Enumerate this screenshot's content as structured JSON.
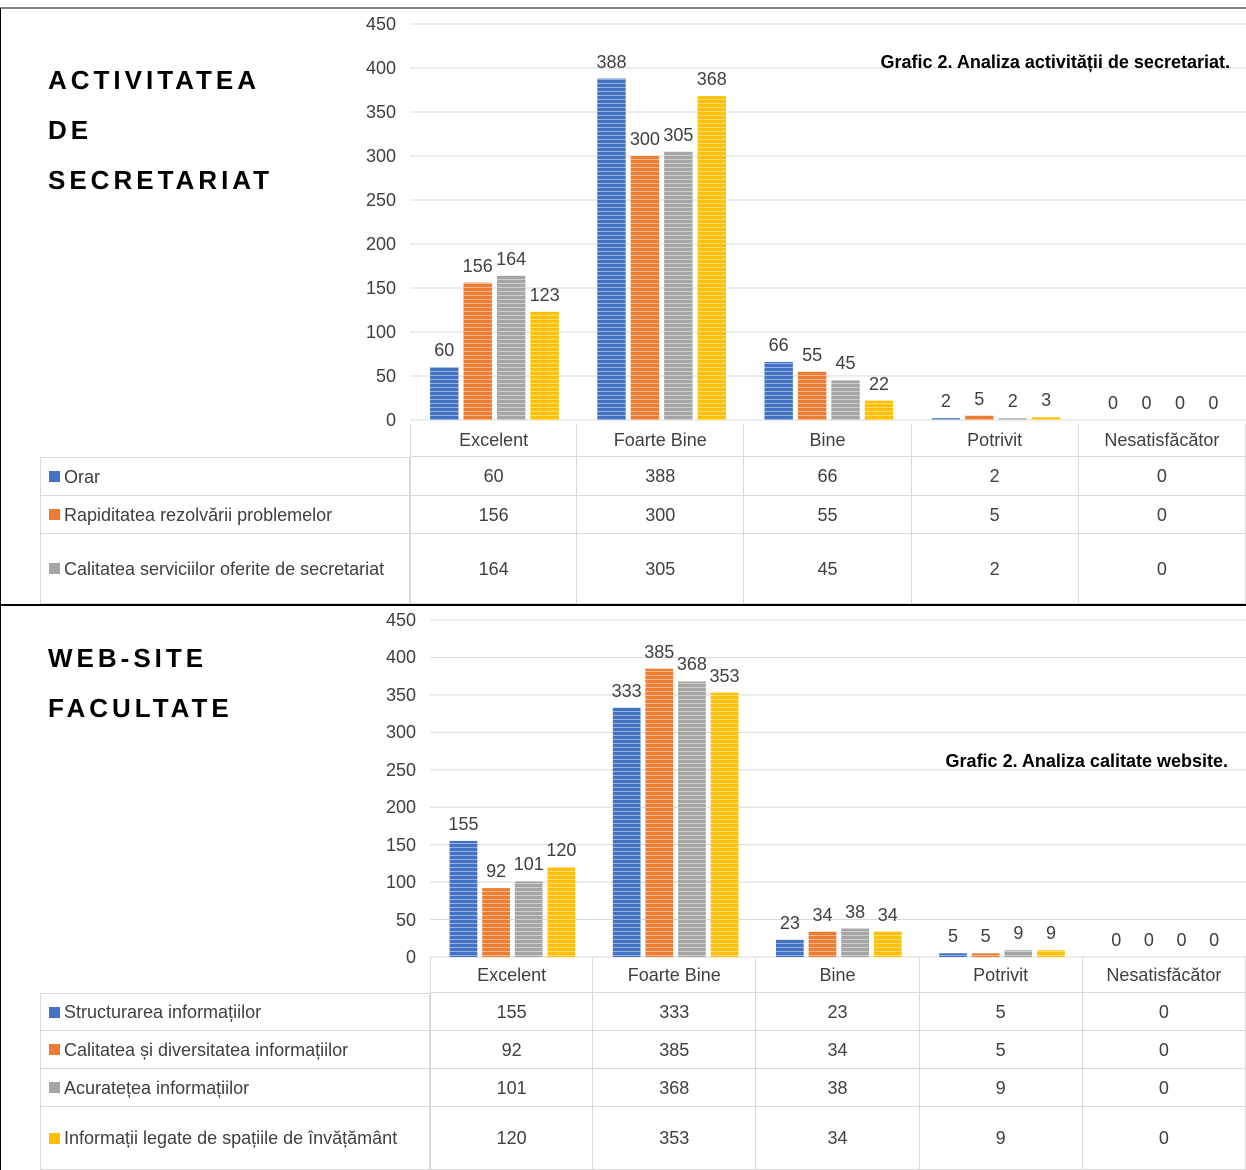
{
  "chart_data": [
    {
      "type": "bar",
      "heading": "ACTIVITATEA DE SECRETARIAT",
      "title": "Grafic 2. Analiza activității de secretariat.",
      "categories": [
        "Excelent",
        "Foarte Bine",
        "Bine",
        "Potrivit",
        "Nesatisfăcător"
      ],
      "series": [
        {
          "name": "Orar",
          "color": "#4472c4",
          "values": [
            60,
            388,
            66,
            2,
            0
          ]
        },
        {
          "name": "Rapiditatea rezolvării problemelor",
          "color": "#ed7d31",
          "values": [
            156,
            300,
            55,
            5,
            0
          ]
        },
        {
          "name": "Calitatea serviciilor oferite de secretariat",
          "color": "#a5a5a5",
          "values": [
            164,
            305,
            45,
            2,
            0
          ]
        },
        {
          "color": "#ffc000",
          "values": [
            123,
            368,
            22,
            3,
            0
          ]
        }
      ],
      "ylim": [
        0,
        450
      ],
      "yticks": [
        0,
        50,
        100,
        150,
        200,
        250,
        300,
        350,
        400,
        450
      ],
      "grid": true
    },
    {
      "type": "bar",
      "heading": "WEB-SITE FACULTATE",
      "title": "Grafic 2. Analiza calitate website.",
      "categories": [
        "Excelent",
        "Foarte Bine",
        "Bine",
        "Potrivit",
        "Nesatisfăcător"
      ],
      "series": [
        {
          "name": "Structurarea informațiilor",
          "color": "#4472c4",
          "values": [
            155,
            333,
            23,
            5,
            0
          ]
        },
        {
          "name": "Calitatea și diversitatea informațiilor",
          "color": "#ed7d31",
          "values": [
            92,
            385,
            34,
            5,
            0
          ]
        },
        {
          "name": "Acuratețea informațiilor",
          "color": "#a5a5a5",
          "values": [
            101,
            368,
            38,
            9,
            0
          ]
        },
        {
          "name": "Informații legate de spațiile de învățământ",
          "color": "#ffc000",
          "values": [
            120,
            353,
            34,
            9,
            0
          ]
        }
      ],
      "ylim": [
        0,
        450
      ],
      "yticks": [
        0,
        50,
        100,
        150,
        200,
        250,
        300,
        350,
        400,
        450
      ],
      "grid": true
    }
  ]
}
